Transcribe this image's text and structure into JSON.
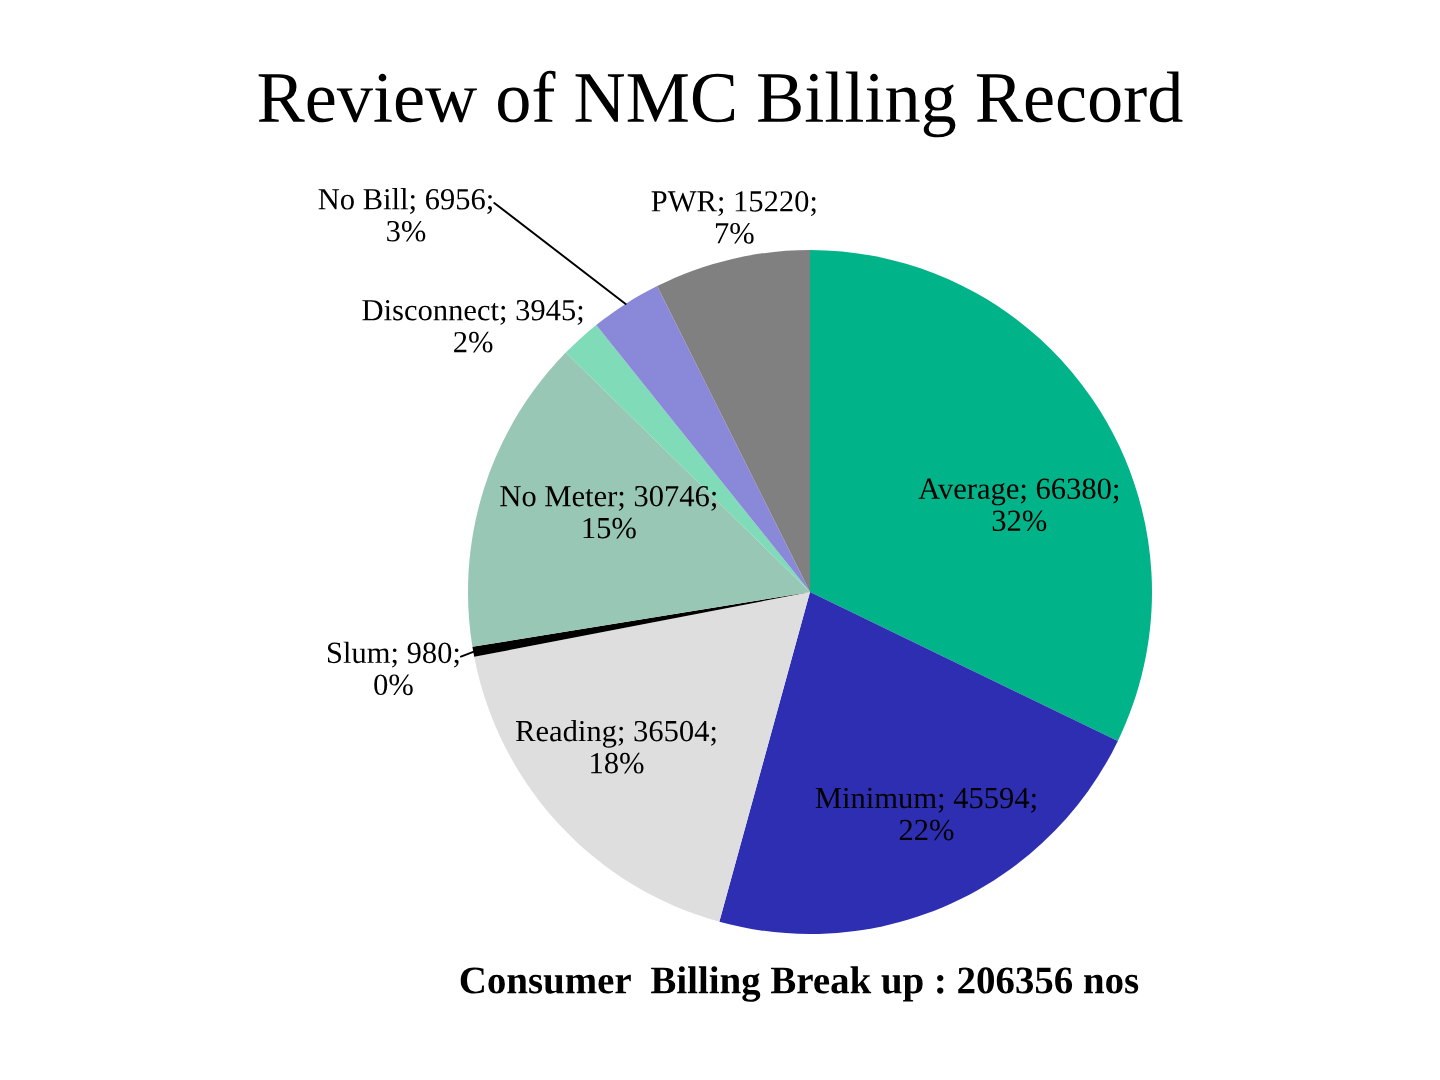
{
  "chart_data": {
    "type": "pie",
    "title": "Review of NMC Billing Record",
    "categories": [
      "Average",
      "Minimum",
      "Reading",
      "Slum",
      "No Meter",
      "Disconnect",
      "No Bill",
      "PWR"
    ],
    "values": [
      66380,
      45594,
      36504,
      980,
      30746,
      3945,
      6956,
      15220
    ],
    "colors": [
      "#00b388",
      "#2e2eb3",
      "#dedede",
      "#000000",
      "#99c7b5",
      "#80dbb8",
      "#8a88d8",
      "#808080"
    ],
    "value_labels": [
      "66380; 32%",
      "45594; 22%",
      "36504; 18%",
      "980; 0%",
      "30746; 15%",
      "3945; 2%",
      "6956; 3%",
      "15220; 7%"
    ],
    "annotations": [
      "Consumer  Billing Break up : 206356 nos"
    ]
  }
}
